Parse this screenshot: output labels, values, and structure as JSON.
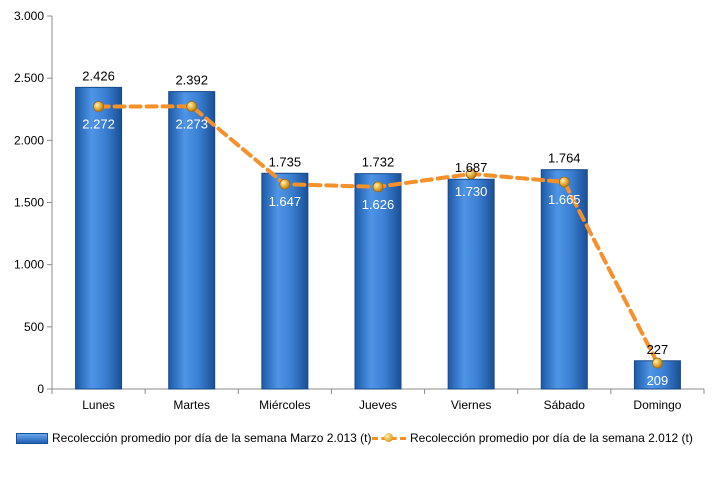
{
  "chart_data": {
    "type": "bar",
    "categories": [
      "Lunes",
      "Martes",
      "Miércoles",
      "Jueves",
      "Viernes",
      "Sábado",
      "Domingo"
    ],
    "series": [
      {
        "name": "Recolección promedio por día de la semana Marzo 2.013 (t)",
        "kind": "bar",
        "values": [
          2426,
          2392,
          1735,
          1732,
          1687,
          1764,
          227
        ],
        "labels": [
          "2.426",
          "2.392",
          "1.735",
          "1.732",
          "1.687",
          "1.764",
          "227"
        ]
      },
      {
        "name": "Recolección promedio por día de la semana 2.012 (t)",
        "kind": "line",
        "values": [
          2272,
          2273,
          1647,
          1626,
          1730,
          1665,
          209
        ],
        "labels": [
          "2.272",
          "2.273",
          "1.647",
          "1.626",
          "1.730",
          "1.665",
          "209"
        ]
      }
    ],
    "ylim": [
      0,
      3000
    ],
    "yticks": [
      0,
      500,
      1000,
      1500,
      2000,
      2500,
      3000
    ],
    "ytick_labels": [
      "0",
      "500",
      "1.000",
      "1.500",
      "2.000",
      "2.500",
      "3.000"
    ],
    "grid": false,
    "legend_position": "bottom",
    "colors": {
      "bar": "#2f73c9",
      "line": "#f5902a",
      "marker": "#e1a832"
    }
  }
}
